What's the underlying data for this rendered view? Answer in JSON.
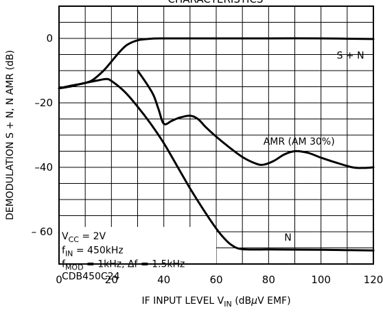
{
  "chart_data": {
    "type": "line",
    "title": "CHARACTERISTICS",
    "xlabel": {
      "main": "IF INPUT LEVEL  V",
      "sub": "IN",
      "unit_pre": "(dB",
      "unit_mu": "μ",
      "unit_post": "V EMF)"
    },
    "ylabel": "DEMODULATION S + N, N AMR  (dB)",
    "xlim": [
      0,
      120
    ],
    "ylim": [
      -70,
      10
    ],
    "xticks": [
      "0",
      "20",
      "40",
      "60",
      "80",
      "100",
      "120"
    ],
    "yticks": [
      "0",
      "–20",
      "–40",
      "– 60"
    ],
    "grid": true,
    "series": [
      {
        "name": "S + N",
        "x": [
          0,
          5,
          10,
          13,
          17,
          20,
          23,
          26,
          30,
          35,
          40,
          50,
          60,
          80,
          100,
          120
        ],
        "y": [
          -15.5,
          -14.6,
          -13.8,
          -12.8,
          -10,
          -7.2,
          -4.3,
          -2,
          -0.6,
          -0.1,
          0,
          0,
          0,
          0,
          0,
          -0.2
        ]
      },
      {
        "name": "AMR (AM 30%)",
        "x": [
          30,
          33,
          36,
          38,
          40,
          43,
          46,
          50,
          53,
          56,
          60,
          65,
          70,
          75,
          78,
          82,
          86,
          90,
          95,
          100,
          106,
          112,
          116,
          120
        ],
        "y": [
          -10,
          -13.5,
          -17.5,
          -22,
          -26.5,
          -25.6,
          -24.6,
          -24,
          -25,
          -27.5,
          -30.5,
          -33.8,
          -36.8,
          -38.8,
          -39.2,
          -38,
          -36,
          -35,
          -35.5,
          -37,
          -38.6,
          -40,
          -40.2,
          -40
        ]
      },
      {
        "name": "N",
        "x": [
          0,
          5,
          10,
          15,
          18,
          20,
          25,
          30,
          35,
          40,
          45,
          50,
          55,
          60,
          63,
          66,
          70,
          80,
          100,
          120
        ],
        "y": [
          -15.5,
          -14.8,
          -13.8,
          -13,
          -12.6,
          -13.2,
          -16.5,
          -21.2,
          -26.5,
          -32.5,
          -39.5,
          -46.5,
          -53,
          -59,
          -62,
          -64.2,
          -65.4,
          -65.5,
          -65.6,
          -65.8
        ]
      }
    ],
    "series_labels": [
      {
        "text": "S + N",
        "x": 106,
        "y": -6.3
      },
      {
        "text": "AMR (AM 30%)",
        "x": 78,
        "y": -33
      },
      {
        "text": "N",
        "x": 86,
        "y": -62.8
      }
    ],
    "conditions": [
      {
        "main": "V",
        "sub": "CC",
        "rest": " = 2V"
      },
      {
        "main": "f",
        "sub": "IN",
        "rest": " = 450kHz"
      },
      {
        "main": "f",
        "sub": "MOD",
        "rest": " = 1kHz, Δf = 1.5kHz"
      },
      {
        "main": "CDB450C24",
        "sub": "",
        "rest": ""
      }
    ]
  }
}
